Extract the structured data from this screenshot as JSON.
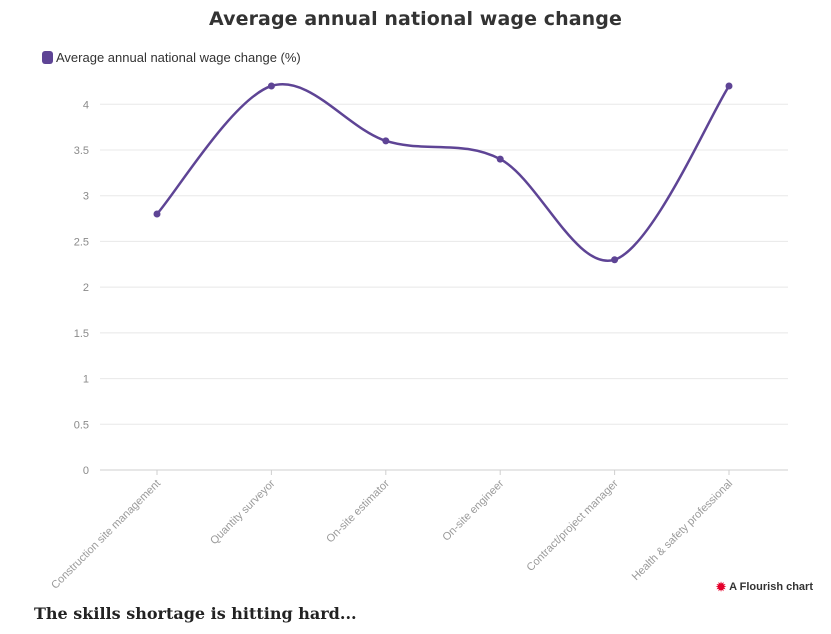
{
  "chart_data": {
    "type": "line",
    "title": "Average annual national wage change",
    "xlabel": "",
    "ylabel": "",
    "categories": [
      "Construction site management",
      "Quantity surveyor",
      "On-site estimator",
      "On-site engineer",
      "Contract/project manager",
      "Health & safety professional"
    ],
    "series": [
      {
        "name": "Average annual national wage change (%)",
        "values": [
          2.8,
          4.2,
          3.6,
          3.4,
          2.3,
          4.2
        ],
        "color": "#5e4495"
      }
    ],
    "ylim": [
      0,
      4.2
    ],
    "yticks": [
      0,
      0.5,
      1,
      1.5,
      2,
      2.5,
      3,
      3.5,
      4
    ],
    "grid": true,
    "legend_position": "top-left"
  },
  "branding": {
    "label": "A Flourish chart",
    "icon": "flourish-logo-icon",
    "color": "#e4002b"
  },
  "article": {
    "heading": "The skills shortage is hitting hard..."
  }
}
